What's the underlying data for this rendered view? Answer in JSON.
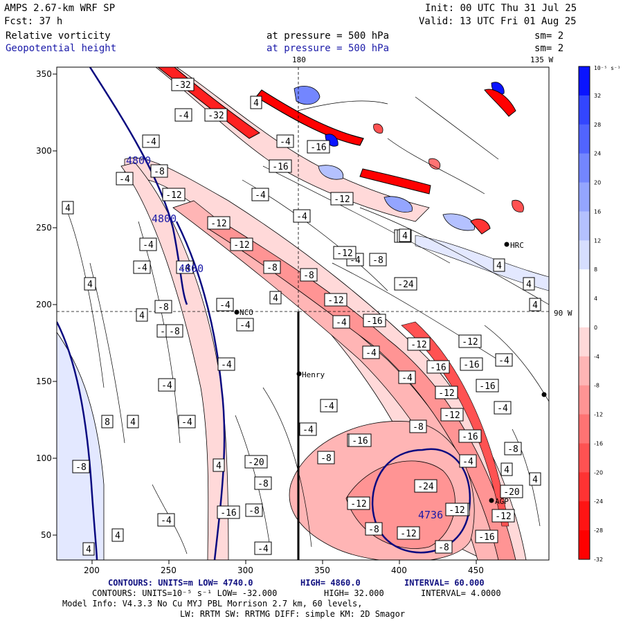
{
  "header": {
    "model_title": "AMPS 2.67-km WRF SP",
    "forecast": "Fcst:   37 h",
    "init": "Init: 00 UTC Thu 31 Jul 25",
    "valid": "Valid: 13 UTC Fri 01 Aug 25",
    "field1": {
      "name": "Relative vorticity",
      "pressure": "at pressure =  500 hPa",
      "sm": "sm= 2"
    },
    "field2": {
      "name": "Geopotential height",
      "pressure": "at pressure =  500 hPa",
      "sm": "sm= 2"
    }
  },
  "map_labels": {
    "lon_180": "180",
    "lon_135w": "135 W",
    "lat_90w": "90 W"
  },
  "stations": [
    "NCO",
    "Henry",
    "HRC",
    "AGP"
  ],
  "height_contour_labels": [
    "4800",
    "4800",
    "4800",
    "4736"
  ],
  "x_axis": {
    "ticks": [
      "200",
      "250",
      "300",
      "350",
      "400",
      "450"
    ]
  },
  "y_axis": {
    "ticks": [
      "350",
      "300",
      "250",
      "200",
      "150",
      "100",
      "50"
    ]
  },
  "colorbar": {
    "unit": "10⁻⁵ s⁻¹",
    "labels": [
      "32",
      "28",
      "24",
      "20",
      "16",
      "12",
      "8",
      "4",
      "0",
      "-4",
      "-8",
      "-12",
      "-16",
      "-20",
      "-24",
      "-28",
      "-32"
    ],
    "colors": [
      "#0a14ff",
      "#3346ff",
      "#5164ff",
      "#7386ff",
      "#94a5ff",
      "#b4c1ff",
      "#d6deff",
      "#ffffff",
      "#ffffff",
      "#ffd9d9",
      "#ffb5b5",
      "#ff9494",
      "#ff7373",
      "#ff5252",
      "#ff3333",
      "#ff1414",
      "#ff0000"
    ]
  },
  "footer": {
    "line1": {
      "contours": "CONTOURS:  UNITS=m  LOW=  4740.0",
      "high": "HIGH=  4860.0",
      "interval": "INTERVAL=  60.000"
    },
    "line2": {
      "contours": "CONTOURS:  UNITS=10⁻⁵ s⁻¹  LOW= -32.000",
      "high": "HIGH=  32.000",
      "interval": "INTERVAL=  4.0000"
    },
    "line3": "Model Info: V4.3.3    No Cu    MYJ PBL   Morrison        2.7 km,  60 levels,",
    "line4": "LW: RRTM SW: RRTMG    DIFF: simple KM: 2D Smagor"
  },
  "contour_label_values": [
    "-32",
    "-4",
    "-32",
    "4",
    "-4",
    "-16",
    "-4",
    "-16",
    "-4",
    "-8",
    "-4",
    "-12",
    "-12",
    "-4",
    "-12",
    "4",
    "-12",
    "-4",
    "-8",
    "-8",
    "4",
    "-4",
    "-4",
    "-4",
    "-8",
    "4",
    "-8",
    "-4",
    "-8",
    "4",
    "-8",
    "-16",
    "-4",
    "4",
    "-12",
    "-4",
    "-8",
    "-12",
    "-4",
    "-16",
    "-4",
    "-12",
    "-16",
    "-12",
    "4",
    "-4",
    "-16",
    "-12",
    "-16",
    "-4",
    "-4",
    "8",
    "4",
    "-4",
    "-12",
    "-8",
    "-4",
    "-16",
    "-4",
    "-8",
    "-16",
    "-4",
    "-20",
    "4",
    "-8",
    "-24",
    "-8",
    "-12",
    "-4",
    "-8",
    "-20",
    "-4",
    "-4",
    "-12",
    "-12",
    "-16",
    "-8",
    "-12",
    "-8",
    "-16",
    "-4",
    "-8",
    "4",
    "4",
    "4",
    "4",
    "-24",
    "4",
    "4",
    "4",
    "4"
  ]
}
